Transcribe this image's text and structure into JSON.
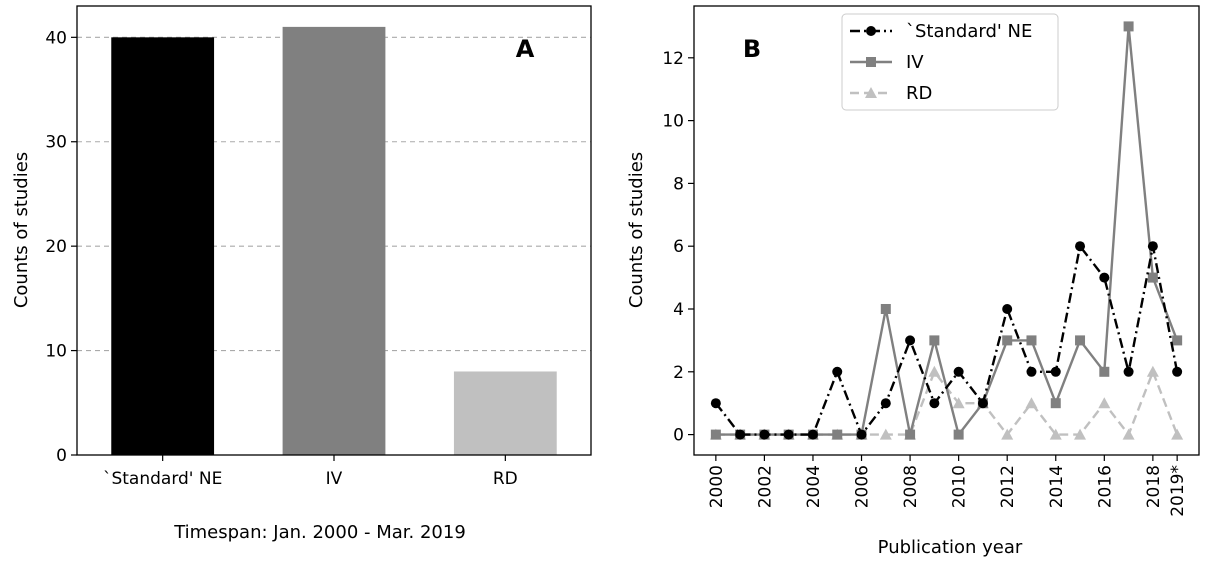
{
  "chart_data": [
    {
      "type": "bar",
      "panel_label": "A",
      "categories": [
        "`Standard' NE",
        "IV",
        "RD"
      ],
      "values": [
        40,
        41,
        8
      ],
      "colors": [
        "#000000",
        "#808080",
        "#c0c0c0"
      ],
      "ylabel": "Counts of studies",
      "ylim": [
        0,
        43
      ],
      "yticks": [
        0,
        10,
        20,
        30,
        40
      ],
      "grid": "y-dashed",
      "caption": "Timespan: Jan. 2000 - Mar. 2019"
    },
    {
      "type": "line",
      "panel_label": "B",
      "xlabel": "Publication year",
      "ylabel": "Counts of studies",
      "x": [
        2000,
        2001,
        2002,
        2003,
        2004,
        2005,
        2006,
        2007,
        2008,
        2009,
        2010,
        2011,
        2012,
        2013,
        2014,
        2015,
        2016,
        2017,
        2018,
        2019
      ],
      "xticks": [
        {
          "value": 2000,
          "label": "2000"
        },
        {
          "value": 2002,
          "label": "2002"
        },
        {
          "value": 2004,
          "label": "2004"
        },
        {
          "value": 2006,
          "label": "2006"
        },
        {
          "value": 2008,
          "label": "2008"
        },
        {
          "value": 2010,
          "label": "2010"
        },
        {
          "value": 2012,
          "label": "2012"
        },
        {
          "value": 2014,
          "label": "2014"
        },
        {
          "value": 2016,
          "label": "2016"
        },
        {
          "value": 2018,
          "label": "2018"
        },
        {
          "value": 2019,
          "label": "2019*"
        }
      ],
      "xlim": [
        1999.1,
        2019.9
      ],
      "ylim": [
        -0.65,
        13.65
      ],
      "yticks": [
        0,
        2,
        4,
        6,
        8,
        10,
        12
      ],
      "legend_position": "upper-center",
      "series": [
        {
          "name": "`Standard' NE",
          "color": "#000000",
          "marker": "circle",
          "dash": "dashdot",
          "values": [
            1,
            0,
            0,
            0,
            0,
            2,
            0,
            1,
            3,
            1,
            2,
            1,
            4,
            2,
            2,
            6,
            5,
            2,
            6,
            2
          ]
        },
        {
          "name": "IV",
          "color": "#808080",
          "marker": "square",
          "dash": "solid",
          "values": [
            0,
            0,
            0,
            0,
            0,
            0,
            0,
            4,
            0,
            3,
            0,
            1,
            3,
            3,
            1,
            3,
            2,
            13,
            5,
            3
          ]
        },
        {
          "name": "RD",
          "color": "#c0c0c0",
          "marker": "triangle",
          "dash": "dashed",
          "values": [
            0,
            0,
            0,
            0,
            0,
            0,
            0,
            0,
            0,
            2,
            1,
            1,
            0,
            1,
            0,
            0,
            1,
            0,
            2,
            0
          ]
        }
      ]
    }
  ]
}
